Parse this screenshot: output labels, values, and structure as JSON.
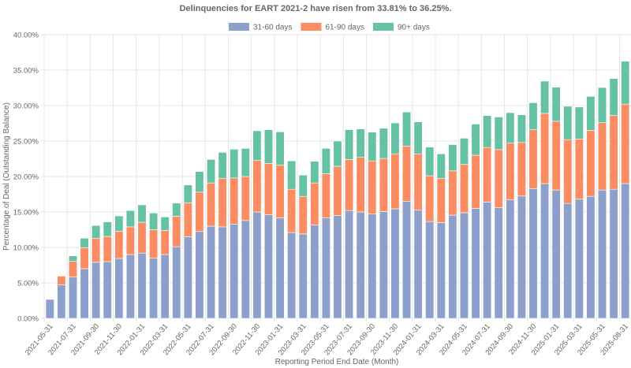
{
  "chart_data": {
    "type": "bar",
    "stacked": true,
    "title": "Delinquencies for EART 2021-2 have risen from 33.81% to 36.25%.",
    "xlabel": "Reporting Period End Date (Month)",
    "ylabel": "Percentage of Deal (Outstanding Balance)",
    "ylim": [
      0,
      40
    ],
    "yticks": [
      "0.00%",
      "5.00%",
      "10.00%",
      "15.00%",
      "20.00%",
      "25.00%",
      "30.00%",
      "35.00%",
      "40.00%"
    ],
    "ytick_values": [
      0,
      5,
      10,
      15,
      20,
      25,
      30,
      35,
      40
    ],
    "grid": true,
    "legend_position": "top",
    "categories": [
      "2021-05-31",
      "2021-06-30",
      "2021-07-31",
      "2021-08-31",
      "2021-09-30",
      "2021-10-31",
      "2021-11-30",
      "2021-12-31",
      "2022-01-31",
      "2022-02-28",
      "2022-03-31",
      "2022-04-30",
      "2022-05-31",
      "2022-06-30",
      "2022-07-31",
      "2022-08-31",
      "2022-09-30",
      "2022-10-31",
      "2022-11-30",
      "2022-12-31",
      "2023-01-31",
      "2023-02-28",
      "2023-03-31",
      "2023-04-30",
      "2023-05-31",
      "2023-06-30",
      "2023-07-31",
      "2023-08-31",
      "2023-09-30",
      "2023-10-31",
      "2023-11-30",
      "2023-12-31",
      "2024-01-31",
      "2024-02-29",
      "2024-03-31",
      "2024-04-30",
      "2024-05-31",
      "2024-06-30",
      "2024-07-31",
      "2024-08-31",
      "2024-09-30",
      "2024-10-31",
      "2024-11-30",
      "2024-12-31",
      "2025-01-31",
      "2025-02-28",
      "2025-03-31",
      "2025-04-30",
      "2025-05-31",
      "2025-06-30",
      "2025-08-31"
    ],
    "visible_xtick_labels": [
      "2021-05-31",
      "2021-07-31",
      "2021-09-30",
      "2021-11-30",
      "2022-01-31",
      "2022-03-31",
      "2022-05-31",
      "2022-07-31",
      "2022-09-30",
      "2022-11-30",
      "2023-01-31",
      "2023-03-31",
      "2023-05-31",
      "2023-07-31",
      "2023-09-30",
      "2023-11-30",
      "2024-01-31",
      "2024-03-31",
      "2024-05-31",
      "2024-07-31",
      "2024-09-30",
      "2024-11-30",
      "2025-01-31",
      "2025-03-31",
      "2025-05-31",
      "2025-08-31"
    ],
    "series": [
      {
        "name": "31-60 days",
        "color": "#8da0cb",
        "values": [
          2.67,
          4.74,
          5.81,
          7.0,
          7.9,
          8.0,
          8.44,
          9.0,
          9.2,
          8.5,
          9.0,
          10.1,
          11.5,
          12.25,
          13.0,
          12.9,
          13.3,
          13.8,
          15.0,
          14.6,
          14.15,
          12.1,
          11.9,
          13.15,
          14.15,
          14.5,
          15.2,
          15.0,
          14.7,
          15.05,
          15.45,
          16.5,
          15.25,
          13.65,
          13.5,
          14.55,
          14.9,
          15.5,
          16.4,
          15.6,
          16.7,
          17.25,
          18.3,
          19.0,
          18.1,
          16.2,
          16.8,
          17.2,
          18.1,
          18.2,
          19.0
        ]
      },
      {
        "name": "61-90 days",
        "color": "#fc8d62",
        "values": [
          0.0,
          1.23,
          2.23,
          2.97,
          3.4,
          3.55,
          3.86,
          3.9,
          4.35,
          4.0,
          3.4,
          4.3,
          4.8,
          5.55,
          6.1,
          6.85,
          6.5,
          6.2,
          7.3,
          7.25,
          7.45,
          6.1,
          5.3,
          5.95,
          6.25,
          6.95,
          7.2,
          7.7,
          7.5,
          7.5,
          7.75,
          7.8,
          7.95,
          6.45,
          6.25,
          6.25,
          6.8,
          7.5,
          7.7,
          8.2,
          8.0,
          7.55,
          8.3,
          9.9,
          9.7,
          9.0,
          8.5,
          9.3,
          9.5,
          10.4,
          11.2
        ]
      },
      {
        "name": "90+ days",
        "color": "#66c2a5",
        "values": [
          0.0,
          0.05,
          0.76,
          1.33,
          1.8,
          2.05,
          2.14,
          2.3,
          2.45,
          2.35,
          1.9,
          1.85,
          2.5,
          2.9,
          3.3,
          3.65,
          4.05,
          3.97,
          4.15,
          4.75,
          4.7,
          4.0,
          3.0,
          3.05,
          3.57,
          3.55,
          4.2,
          4.0,
          4.05,
          4.25,
          4.35,
          4.8,
          4.5,
          4.05,
          3.45,
          3.7,
          3.7,
          4.4,
          4.5,
          4.6,
          4.3,
          3.9,
          3.8,
          4.55,
          4.8,
          4.7,
          4.5,
          4.8,
          4.95,
          5.21,
          6.05
        ]
      }
    ]
  }
}
